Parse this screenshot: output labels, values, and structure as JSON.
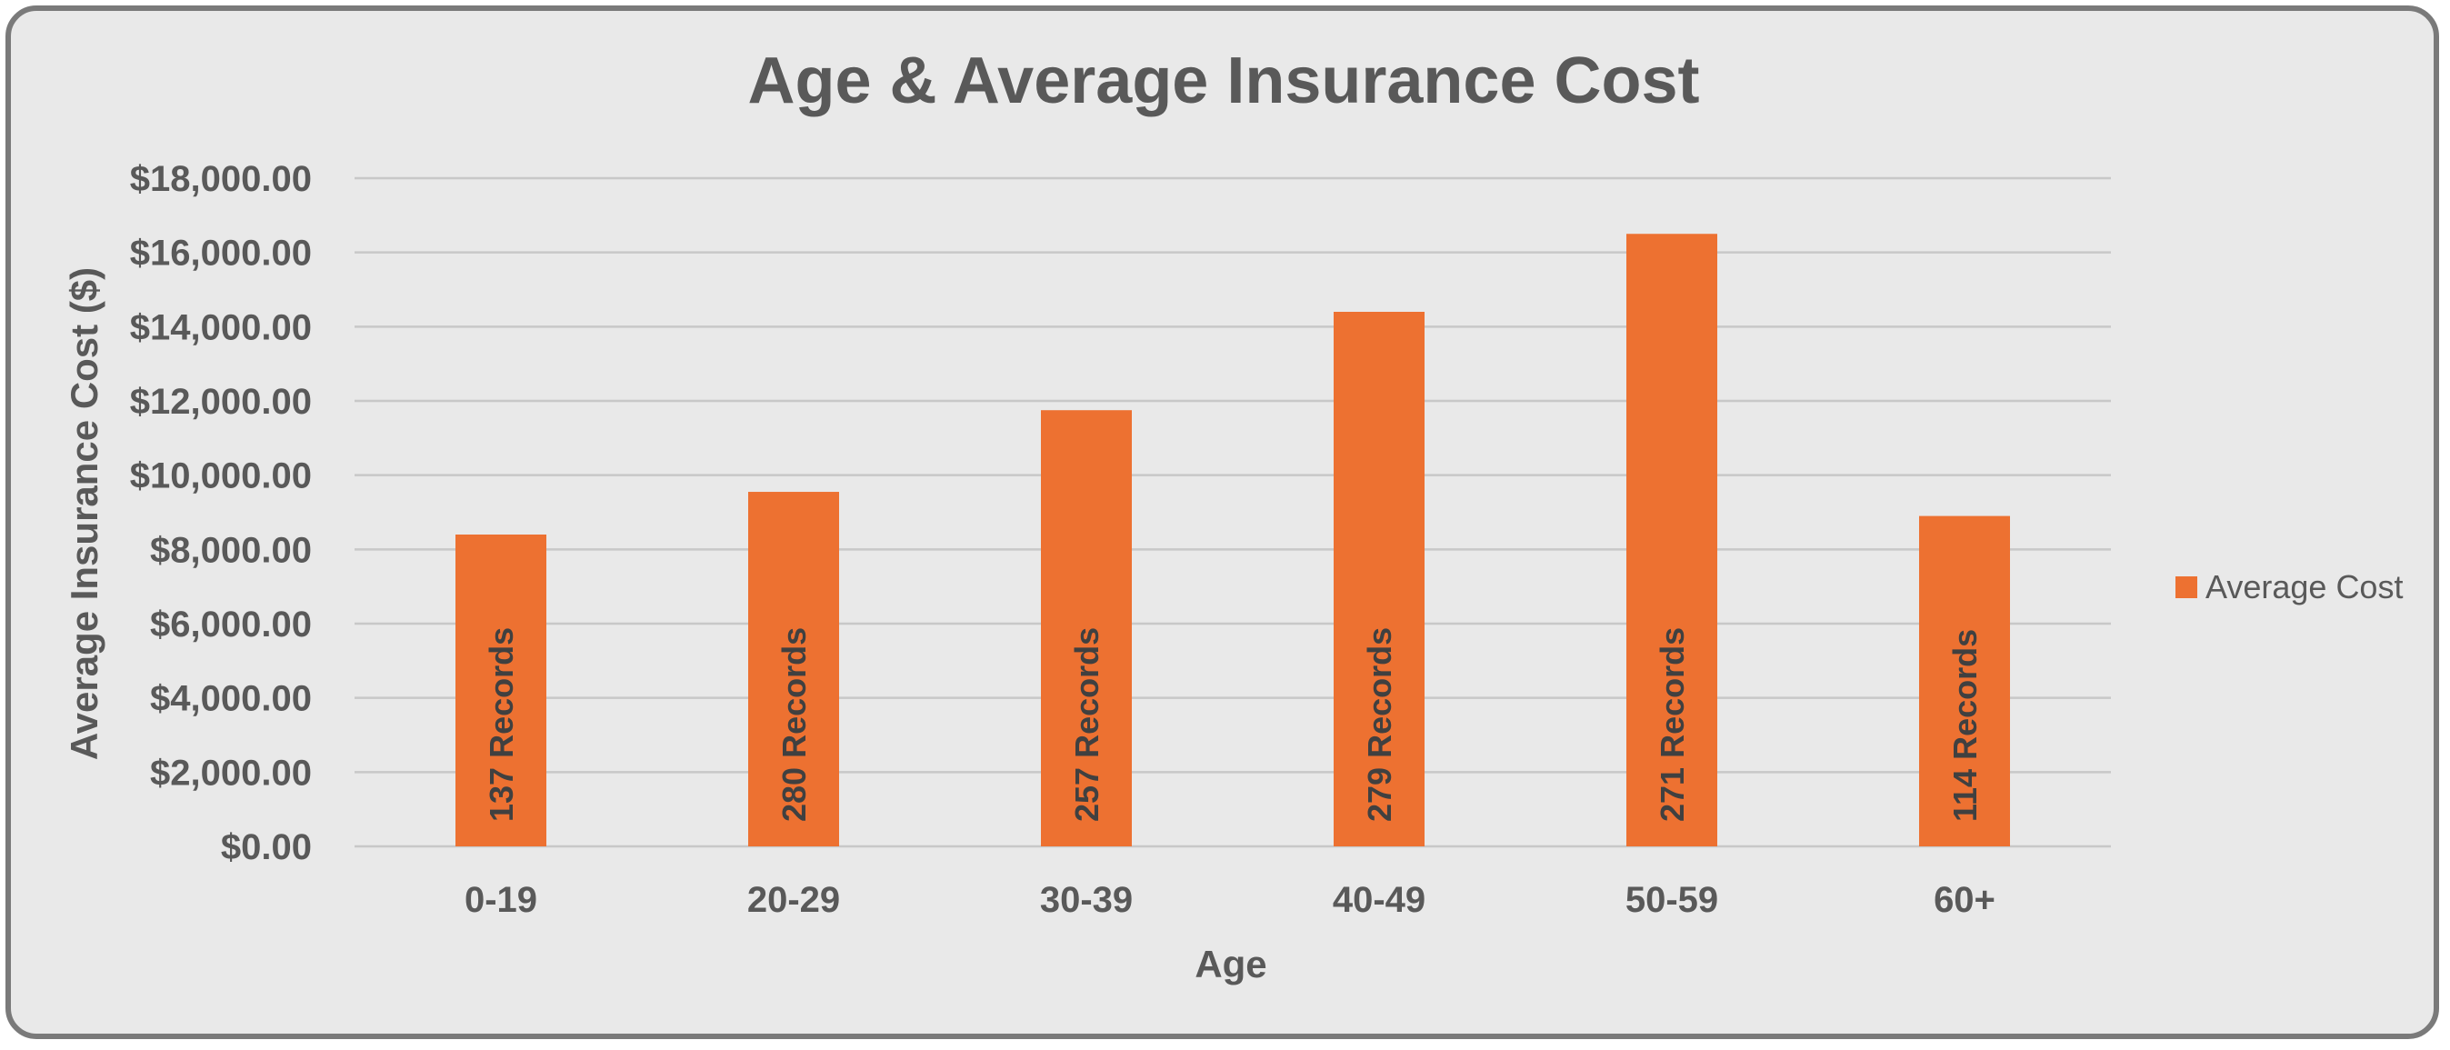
{
  "chart_data": {
    "type": "bar",
    "title": "Age & Average Insurance Cost",
    "xlabel": "Age",
    "ylabel": "Average Insurance Cost ($)",
    "categories": [
      "0-19",
      "20-29",
      "30-39",
      "40-49",
      "50-59",
      "60+"
    ],
    "series": [
      {
        "name": "Average Cost",
        "color": "#ED7131",
        "values": [
          8400,
          9550,
          11750,
          14400,
          16500,
          8900
        ],
        "data_labels": [
          "137 Records",
          "280 Records",
          "257 Records",
          "279 Records",
          "271 Records",
          "114 Records"
        ]
      }
    ],
    "ylim": [
      0,
      18000
    ],
    "yticks": [
      0,
      2000,
      4000,
      6000,
      8000,
      10000,
      12000,
      14000,
      16000,
      18000
    ],
    "ytick_labels": [
      "$0.00",
      "$2,000.00",
      "$4,000.00",
      "$6,000.00",
      "$8,000.00",
      "$10,000.00",
      "$12,000.00",
      "$14,000.00",
      "$16,000.00",
      "$18,000.00"
    ],
    "grid": true,
    "legend_position": "right"
  }
}
